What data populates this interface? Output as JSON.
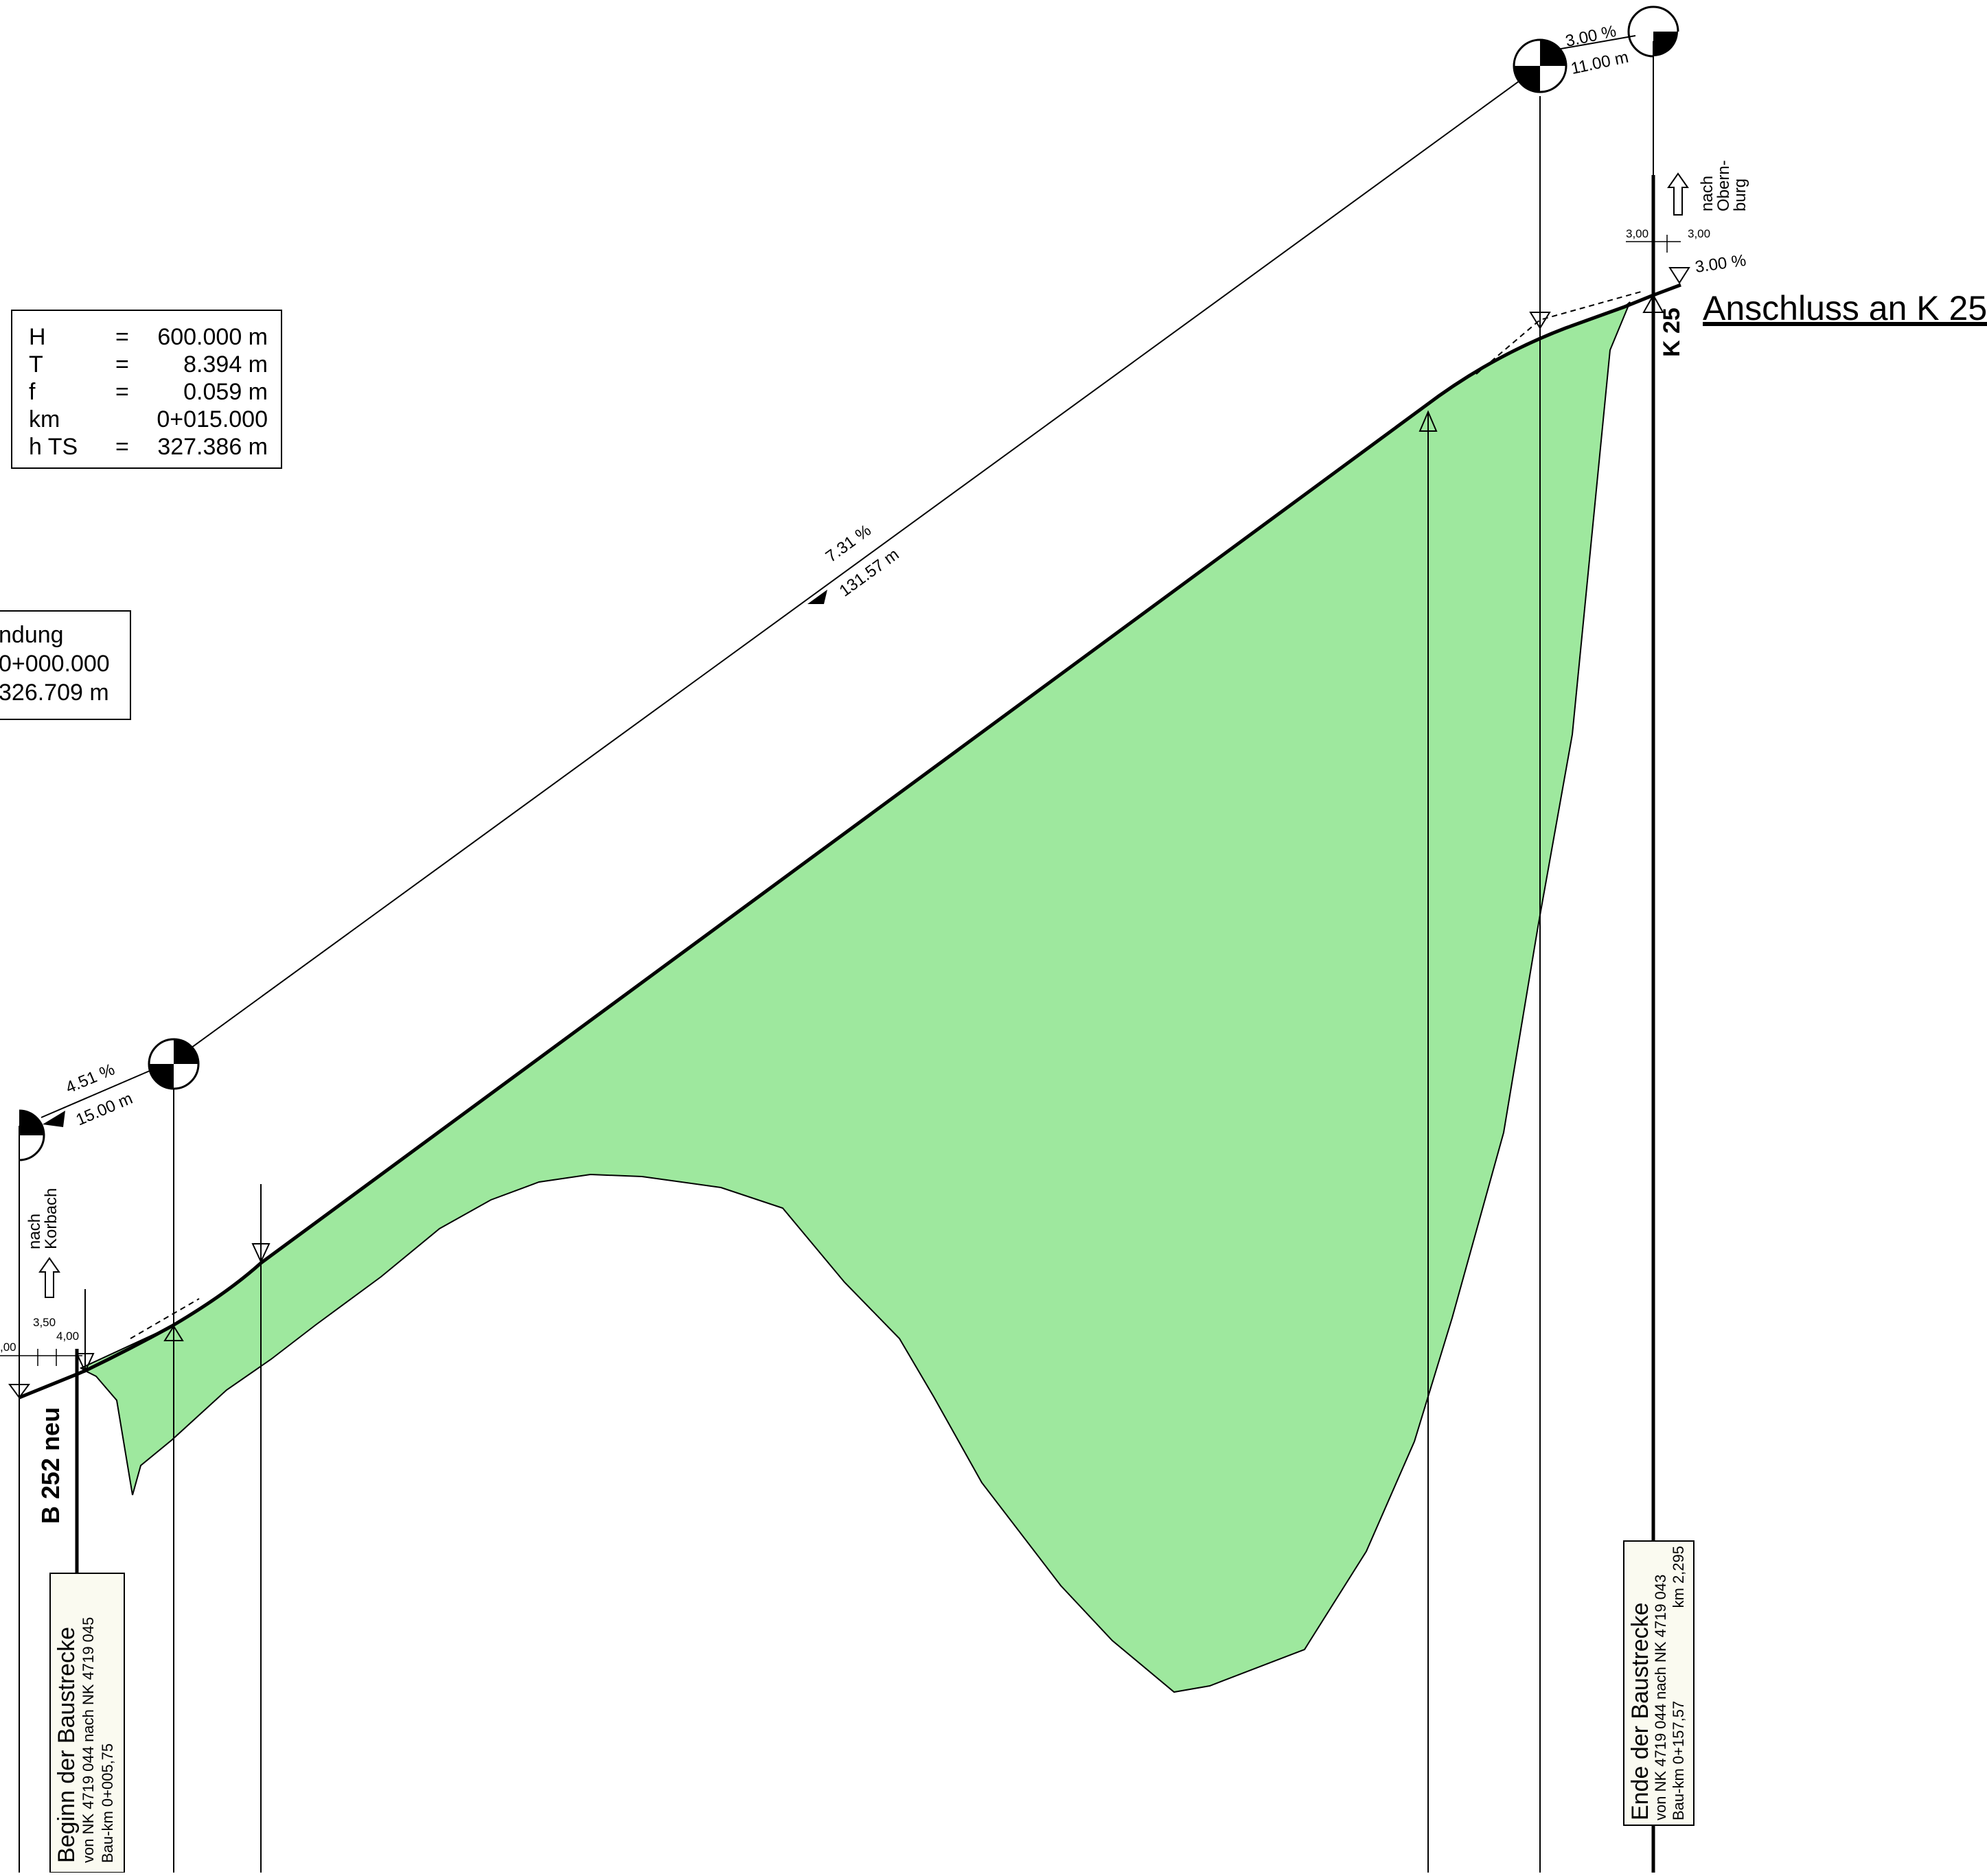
{
  "left_curve_box": {
    "H_label": "H",
    "H_eq": "=",
    "H_value": "600.000 m",
    "T_label": "T",
    "T_eq": "=",
    "T_value": "8.394 m",
    "f_label": "f",
    "f_eq": "=",
    "f_value": "0.059 m",
    "km_label": "km",
    "km_value": "0+015.000",
    "hts_label": "h TS",
    "hts_eq": "=",
    "hts_value": "327.386 m"
  },
  "partial_box": {
    "line1": "ndung",
    "line2": "0+000.000",
    "line3": "326.709 m"
  },
  "slopes": {
    "main_pct": "7.31 %",
    "main_len": "131.57 m",
    "left_pct": "4.51 %",
    "left_len": "15.00 m",
    "right_pct": "3.00 %",
    "right_len": "11.00 m",
    "end_pct": "3.00 %"
  },
  "road_labels": {
    "b252": "B 252 neu",
    "k25": "K 25",
    "connection": "Anschluss an K 25",
    "to_korbach_1": "nach",
    "to_korbach_2": "Korbach",
    "to_obernburg_1": "nach",
    "to_obernburg_2": "Obern-",
    "to_obernburg_3": "burg"
  },
  "widths": {
    "left_a": ",00",
    "left_b": "3,50",
    "left_c": "4,00",
    "right_a": "3,00",
    "right_b": "3,00"
  },
  "start_box": {
    "title": "Beginn der Baustrecke",
    "line1": "von NK 4719 044 nach NK 4719 045",
    "line2": "Bau-km 0+005,75"
  },
  "end_box": {
    "title": "Ende der Baustrecke",
    "line1": "von NK 4719 044 nach NK 4719 043",
    "line2": "Bau-km 0+157,57",
    "line3": "km 2,295"
  },
  "colors": {
    "fill": "#9ee89e",
    "line": "#000000"
  }
}
